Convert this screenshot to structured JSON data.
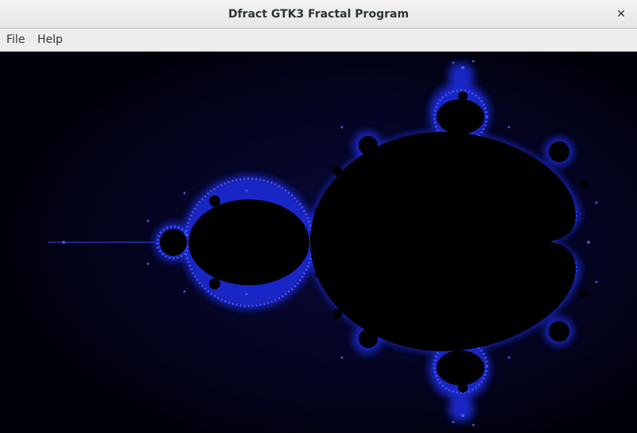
{
  "window": {
    "title": "Dfract GTK3 Fractal Program",
    "close_icon": "close-icon"
  },
  "menubar": {
    "items": [
      {
        "label": "File"
      },
      {
        "label": "Help"
      }
    ]
  },
  "canvas": {
    "content": "mandelbrot-set-render",
    "colors": {
      "background": "#00000a",
      "set_interior": "#000000",
      "boundary_glow": "#2a3cff"
    }
  }
}
